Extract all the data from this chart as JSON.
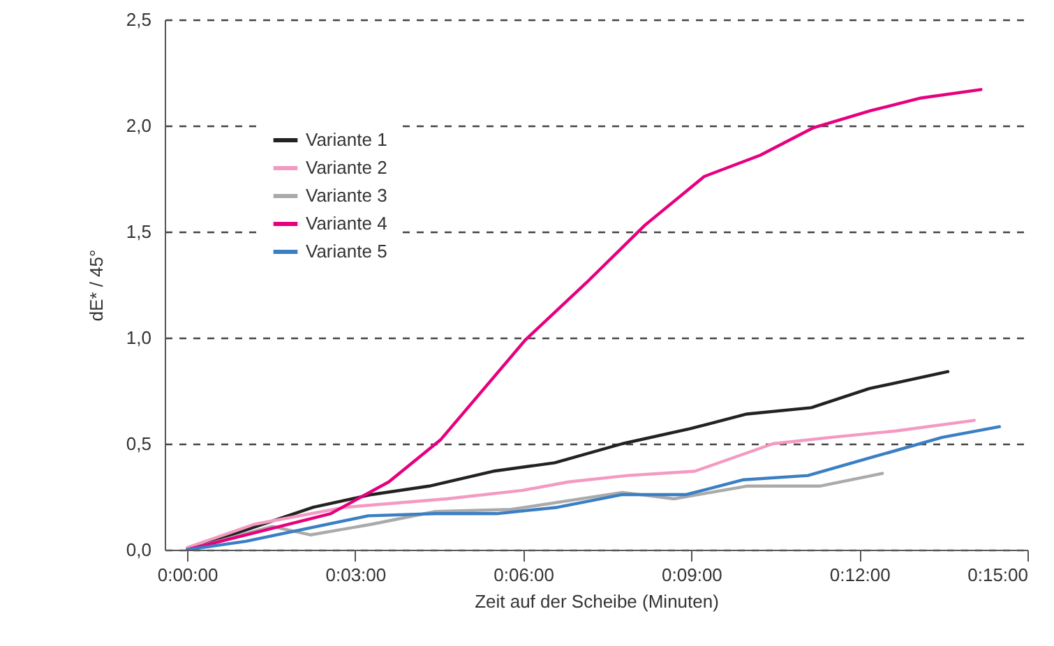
{
  "chart_data": {
    "type": "line",
    "xlabel": "Zeit auf der Scheibe (Minuten)",
    "ylabel": "dE* / 45°",
    "xlim": [
      -0.4,
      15
    ],
    "ylim": [
      0,
      2.5
    ],
    "xticks": [
      {
        "value": 0,
        "label": "0:00:00"
      },
      {
        "value": 3,
        "label": "0:03:00"
      },
      {
        "value": 6,
        "label": "0:06:00"
      },
      {
        "value": 9,
        "label": "0:09:00"
      },
      {
        "value": 12,
        "label": "0:12:00"
      },
      {
        "value": 15,
        "label": "0:15:00"
      }
    ],
    "yticks": [
      {
        "value": 0,
        "label": "0,0"
      },
      {
        "value": 0.5,
        "label": "0,5"
      },
      {
        "value": 1,
        "label": "1,0"
      },
      {
        "value": 1.5,
        "label": "1,5"
      },
      {
        "value": 2,
        "label": "2,0"
      },
      {
        "value": 2.5,
        "label": "2,5"
      }
    ],
    "grid": "y",
    "legend": "top left",
    "line_style": "solid",
    "series": [
      {
        "name": "Variante 1",
        "color": "#222222",
        "x": [
          0,
          2.25,
          3.29,
          4.32,
          5.46,
          6.56,
          7.77,
          8.97,
          9.99,
          11.14,
          12.18,
          13.58
        ],
        "values": [
          0,
          0.2,
          0.26,
          0.3,
          0.37,
          0.41,
          0.5,
          0.57,
          0.64,
          0.67,
          0.76,
          0.84
        ]
      },
      {
        "name": "Variante 2",
        "color": "#f49ac2",
        "x": [
          0,
          1.2,
          2.82,
          4.64,
          5.99,
          6.81,
          7.86,
          9.06,
          10.46,
          11.5,
          12.65,
          14.05
        ],
        "values": [
          0.01,
          0.12,
          0.2,
          0.24,
          0.28,
          0.32,
          0.35,
          0.37,
          0.5,
          0.53,
          0.56,
          0.61
        ]
      },
      {
        "name": "Variante 3",
        "color": "#aaaaaa",
        "x": [
          0,
          1.52,
          2.2,
          3.29,
          4.43,
          5.78,
          7.77,
          8.69,
          9.99,
          11.29,
          12.41
        ],
        "values": [
          0,
          0.11,
          0.07,
          0.12,
          0.18,
          0.19,
          0.27,
          0.24,
          0.3,
          0.3,
          0.36
        ]
      },
      {
        "name": "Variante 4",
        "color": "#e6007e",
        "x": [
          0,
          2.56,
          3.6,
          4.53,
          6.04,
          7.13,
          8.17,
          9.23,
          10.23,
          11.18,
          12.2,
          13.1,
          14.17
        ],
        "values": [
          0,
          0.17,
          0.32,
          0.52,
          0.99,
          1.26,
          1.53,
          1.76,
          1.86,
          1.99,
          2.07,
          2.13,
          2.17
        ]
      },
      {
        "name": "Variante 5",
        "color": "#3a7fc4",
        "x": [
          0,
          1.05,
          3.23,
          4.43,
          5.52,
          6.61,
          7.77,
          8.91,
          9.93,
          11.08,
          12.28,
          13.48,
          14.5
        ],
        "values": [
          0,
          0.04,
          0.16,
          0.17,
          0.17,
          0.2,
          0.26,
          0.26,
          0.33,
          0.35,
          0.44,
          0.53,
          0.58
        ]
      }
    ]
  }
}
